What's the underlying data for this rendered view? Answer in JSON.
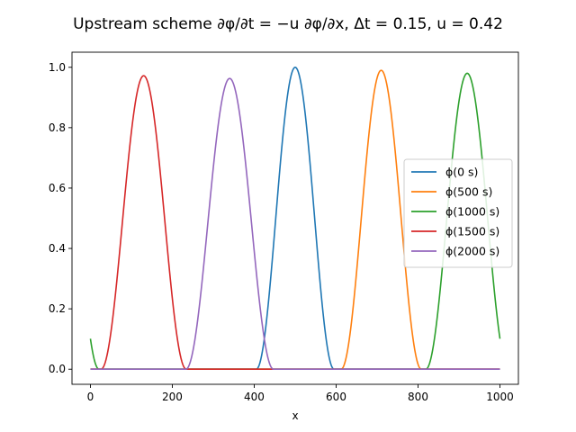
{
  "chart_data": {
    "type": "line",
    "title": "Upstream scheme ∂φ/∂t = −u ∂φ/∂x, Δt = 0.15, u = 0.42",
    "xlabel": "x",
    "ylabel": "",
    "xlim": [
      -45,
      1045
    ],
    "ylim": [
      -0.05,
      1.05
    ],
    "xticks": [
      0,
      200,
      400,
      600,
      800,
      1000
    ],
    "yticks": [
      0.0,
      0.2,
      0.4,
      0.6,
      0.8,
      1.0
    ],
    "xtick_labels": [
      "0",
      "200",
      "400",
      "600",
      "800",
      "1000"
    ],
    "ytick_labels": [
      "0.0",
      "0.2",
      "0.4",
      "0.6",
      "0.8",
      "1.0"
    ],
    "grid": false,
    "legend_position": "center-right",
    "pulse_profile": "cosine-squared",
    "domain": [
      0,
      1000
    ],
    "periodic": true,
    "series": [
      {
        "name": "ϕ(0 s)",
        "color": "#1f77b4",
        "center": 500,
        "peak": 1.0,
        "half_width": 95
      },
      {
        "name": "ϕ(500 s)",
        "color": "#ff7f0e",
        "center": 710,
        "peak": 0.99,
        "half_width": 98
      },
      {
        "name": "ϕ(1000 s)",
        "color": "#2ca02c",
        "center": 920,
        "peak": 0.98,
        "half_width": 101
      },
      {
        "name": "ϕ(1500 s)",
        "color": "#d62728",
        "center": 130,
        "peak": 0.972,
        "half_width": 104
      },
      {
        "name": "ϕ(2000 s)",
        "color": "#9467bd",
        "center": 340,
        "peak": 0.963,
        "half_width": 107
      }
    ]
  }
}
